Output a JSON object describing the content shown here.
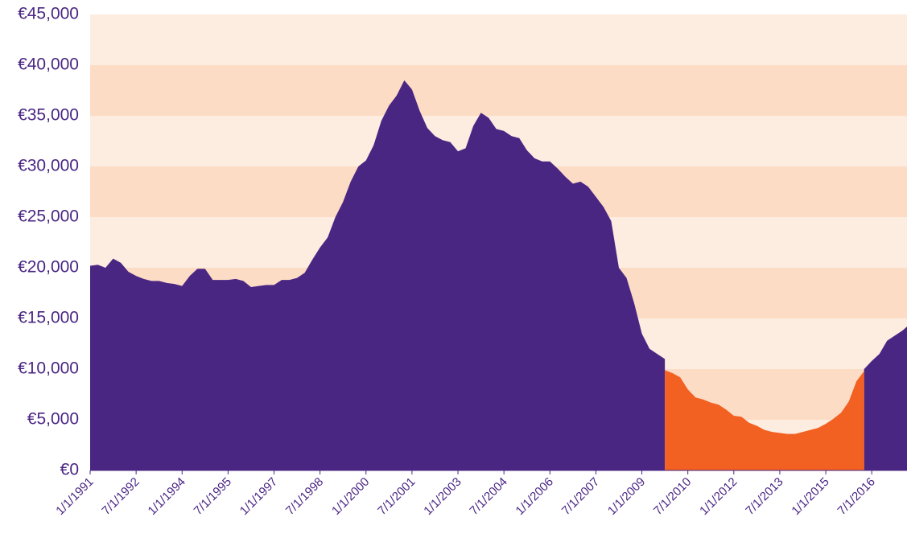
{
  "chart_data": {
    "type": "area",
    "x": [
      1991,
      1991.25,
      1991.5,
      1991.75,
      1992,
      1992.25,
      1992.5,
      1992.75,
      1993,
      1993.25,
      1993.5,
      1993.75,
      1994,
      1994.25,
      1994.5,
      1994.75,
      1995,
      1995.25,
      1995.5,
      1995.75,
      1996,
      1996.25,
      1996.5,
      1996.75,
      1997,
      1997.25,
      1997.5,
      1997.75,
      1998,
      1998.25,
      1998.5,
      1998.75,
      1999,
      1999.25,
      1999.5,
      1999.75,
      2000,
      2000.25,
      2000.5,
      2000.75,
      2001,
      2001.25,
      2001.5,
      2001.75,
      2002,
      2002.25,
      2002.5,
      2002.75,
      2003,
      2003.25,
      2003.5,
      2003.75,
      2004,
      2004.25,
      2004.5,
      2004.75,
      2005,
      2005.25,
      2005.5,
      2005.75,
      2006,
      2006.25,
      2006.5,
      2006.75,
      2007,
      2007.25,
      2007.5,
      2007.75,
      2008,
      2008.25,
      2008.5,
      2008.75,
      2009,
      2009.25,
      2009.5,
      2009.75,
      2010,
      2010.25,
      2010.5,
      2010.75,
      2011,
      2011.25,
      2011.5,
      2011.75,
      2012,
      2012.25,
      2012.5,
      2012.75,
      2013,
      2013.25,
      2013.5,
      2013.75,
      2014,
      2014.25,
      2014.5,
      2014.75,
      2015,
      2015.25,
      2015.5,
      2015.75,
      2016,
      2016.25,
      2016.5,
      2016.75,
      2017,
      2017.25,
      2017.5,
      2017.65
    ],
    "series": [
      {
        "color": "#4a2683",
        "values": [
          20200,
          20300,
          20000,
          20900,
          20500,
          19600,
          19200,
          18900,
          18700,
          18700,
          18500,
          18400,
          18200,
          19200,
          19900,
          19900,
          18800,
          18800,
          18800,
          18900,
          18700,
          18100,
          18200,
          18300,
          18300,
          18800,
          18800,
          19000,
          19500,
          20800,
          22000,
          23000,
          25000,
          26500,
          28500,
          30000,
          30600,
          32100,
          34500,
          36000,
          37000,
          38500,
          37600,
          35500,
          33800,
          33000,
          32600,
          32400,
          31500,
          31800,
          34000,
          35300,
          34800,
          33700,
          33500,
          33000,
          32800,
          31600,
          30800,
          30500,
          30500,
          29800,
          29000,
          28300,
          28500,
          28000,
          27000,
          26000,
          24600,
          20000,
          19000,
          16500,
          13500,
          12000,
          11500,
          11000,
          null,
          null,
          null,
          null,
          null,
          null,
          null,
          null,
          null,
          null,
          null,
          null,
          null,
          null,
          null,
          null,
          null,
          null,
          null,
          null,
          null,
          null,
          null,
          null,
          null,
          10000,
          10800,
          11500,
          12800,
          13300,
          13800,
          14200
        ]
      },
      {
        "color": "#f26122",
        "values": [
          null,
          null,
          null,
          null,
          null,
          null,
          null,
          null,
          null,
          null,
          null,
          null,
          null,
          null,
          null,
          null,
          null,
          null,
          null,
          null,
          null,
          null,
          null,
          null,
          null,
          null,
          null,
          null,
          null,
          null,
          null,
          null,
          null,
          null,
          null,
          null,
          null,
          null,
          null,
          null,
          null,
          null,
          null,
          null,
          null,
          null,
          null,
          null,
          null,
          null,
          null,
          null,
          null,
          null,
          null,
          null,
          null,
          null,
          null,
          null,
          null,
          null,
          null,
          null,
          null,
          null,
          null,
          null,
          null,
          null,
          null,
          null,
          null,
          null,
          null,
          9900,
          9600,
          9200,
          8000,
          7200,
          7000,
          6700,
          6500,
          6000,
          5400,
          5300,
          4700,
          4400,
          4000,
          3800,
          3700,
          3600,
          3600,
          3800,
          4000,
          4200,
          4600,
          5100,
          5700,
          6800,
          8800,
          9800,
          null,
          null,
          null,
          null,
          null,
          null
        ]
      }
    ],
    "xlim": [
      1991,
      2017.65
    ],
    "xticks": [
      {
        "value": 1991,
        "label": "1/1/1991"
      },
      {
        "value": 1992.5,
        "label": "7/1/1992"
      },
      {
        "value": 1994,
        "label": "1/1/1994"
      },
      {
        "value": 1995.5,
        "label": "7/1/1995"
      },
      {
        "value": 1997,
        "label": "1/1/1997"
      },
      {
        "value": 1998.5,
        "label": "7/1/1998"
      },
      {
        "value": 2000,
        "label": "1/1/2000"
      },
      {
        "value": 2001.5,
        "label": "7/1/2001"
      },
      {
        "value": 2003,
        "label": "1/1/2003"
      },
      {
        "value": 2004.5,
        "label": "7/1/2004"
      },
      {
        "value": 2006,
        "label": "1/1/2006"
      },
      {
        "value": 2007.5,
        "label": "7/1/2007"
      },
      {
        "value": 2009,
        "label": "1/1/2009"
      },
      {
        "value": 2010.5,
        "label": "7/1/2010"
      },
      {
        "value": 2012,
        "label": "1/1/2012"
      },
      {
        "value": 2013.5,
        "label": "7/1/2013"
      },
      {
        "value": 2015,
        "label": "1/1/2015"
      },
      {
        "value": 2016.5,
        "label": "7/1/2016"
      }
    ],
    "ylim": [
      0,
      45000
    ],
    "yticks": [
      {
        "value": 0,
        "label": "€0"
      },
      {
        "value": 5000,
        "label": "€5,000"
      },
      {
        "value": 10000,
        "label": "€10,000"
      },
      {
        "value": 15000,
        "label": "€15,000"
      },
      {
        "value": 20000,
        "label": "€20,000"
      },
      {
        "value": 25000,
        "label": "€25,000"
      },
      {
        "value": 30000,
        "label": "€30,000"
      },
      {
        "value": 35000,
        "label": "€35,000"
      },
      {
        "value": 40000,
        "label": "€40,000"
      },
      {
        "value": 45000,
        "label": "€45,000"
      }
    ],
    "grid": true
  }
}
